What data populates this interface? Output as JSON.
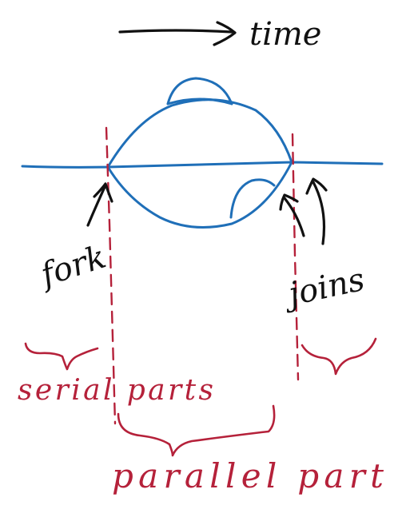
{
  "labels": {
    "time": "time",
    "fork": "fork",
    "joins": "joins",
    "serial_parts": "serial parts",
    "parallel_part": "parallel part"
  },
  "colors": {
    "ink": "#111111",
    "thread": "#1f6fb8",
    "annotation": "#b5213a"
  }
}
